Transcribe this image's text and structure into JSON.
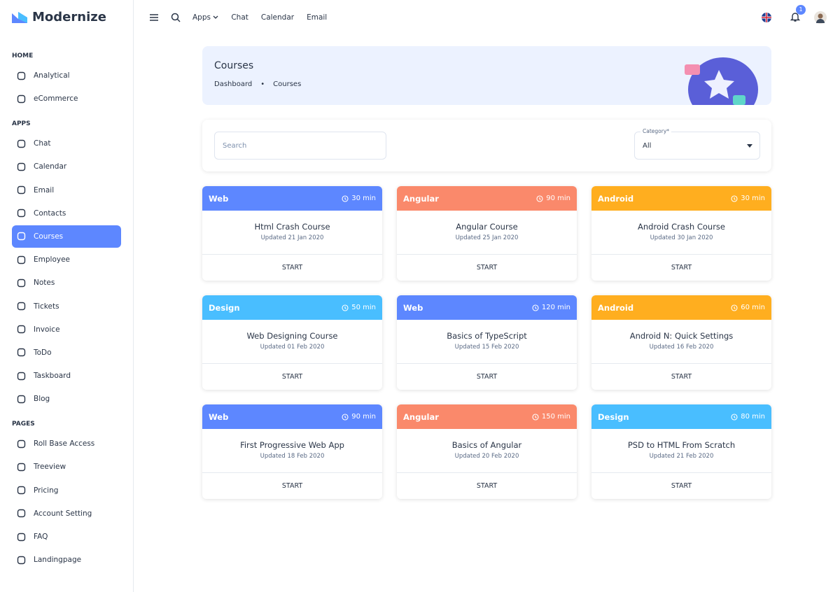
{
  "brand": "Modernize",
  "sidebar": [
    {
      "heading": "HOME",
      "items": [
        "Analytical",
        "eCommerce"
      ]
    },
    {
      "heading": "APPS",
      "items": [
        "Chat",
        "Calendar",
        "Email",
        "Contacts",
        "Courses",
        "Employee",
        "Notes",
        "Tickets",
        "Invoice",
        "ToDo",
        "Taskboard",
        "Blog"
      ]
    },
    {
      "heading": "PAGES",
      "items": [
        "Roll Base Access",
        "Treeview",
        "Pricing",
        "Account Setting",
        "FAQ",
        "Landingpage"
      ]
    }
  ],
  "active_item": "sidebar.1.items.4",
  "topbar": {
    "nav": [
      "Apps",
      "Chat",
      "Calendar",
      "Email"
    ],
    "notifications": "1"
  },
  "header": {
    "title": "Courses",
    "breadcrumb": [
      "Dashboard",
      "Courses"
    ]
  },
  "filter": {
    "search_placeholder": "Search",
    "category_label": "Category*",
    "category_value": "All"
  },
  "courses": [
    {
      "category": "Web",
      "color": "#5d87ff",
      "duration": "30 min",
      "title": "Html Crash Course",
      "updated": "Updated 21 Jan 2020",
      "action": "START"
    },
    {
      "category": "Angular",
      "color": "#fa896b",
      "duration": "90 min",
      "title": "Angular Course",
      "updated": "Updated 25 Jan 2020",
      "action": "START"
    },
    {
      "category": "Android",
      "color": "#ffae1f",
      "duration": "30 min",
      "title": "Android Crash Course",
      "updated": "Updated 30 Jan 2020",
      "action": "START"
    },
    {
      "category": "Design",
      "color": "#49beff",
      "duration": "50 min",
      "title": "Web Designing Course",
      "updated": "Updated 01 Feb 2020",
      "action": "START"
    },
    {
      "category": "Web",
      "color": "#5d87ff",
      "duration": "120 min",
      "title": "Basics of TypeScript",
      "updated": "Updated 15 Feb 2020",
      "action": "START"
    },
    {
      "category": "Android",
      "color": "#ffae1f",
      "duration": "60 min",
      "title": "Android N: Quick Settings",
      "updated": "Updated 16 Feb 2020",
      "action": "START"
    },
    {
      "category": "Web",
      "color": "#5d87ff",
      "duration": "90 min",
      "title": "First Progressive Web App",
      "updated": "Updated 18 Feb 2020",
      "action": "START"
    },
    {
      "category": "Angular",
      "color": "#fa896b",
      "duration": "150 min",
      "title": "Basics of Angular",
      "updated": "Updated 20 Feb 2020",
      "action": "START"
    },
    {
      "category": "Design",
      "color": "#49beff",
      "duration": "80 min",
      "title": "PSD to HTML From Scratch",
      "updated": "Updated 21 Feb 2020",
      "action": "START"
    }
  ]
}
